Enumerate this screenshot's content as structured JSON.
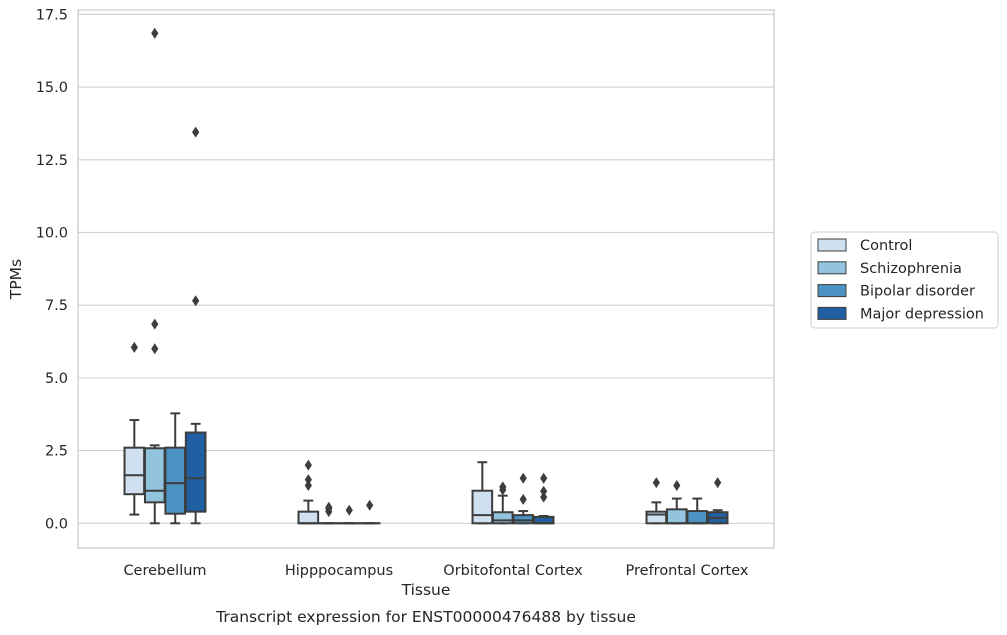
{
  "chart_data": {
    "type": "box",
    "xlabel": "Tissue",
    "ylabel": "TPMs",
    "caption": "Transcript expression for ENST00000476488 by tissue",
    "ylim": [
      -0.85,
      17.65
    ],
    "yticks": [
      "0.0",
      "2.5",
      "5.0",
      "7.5",
      "10.0",
      "12.5",
      "15.0",
      "17.5"
    ],
    "ytick_values": [
      0,
      2.5,
      5,
      7.5,
      10,
      12.5,
      15,
      17.5
    ],
    "grid": "horizontal",
    "legend_position": "right-outside",
    "categories": [
      "Cerebellum",
      "Hipppocampus",
      "Orbitofontal Cortex",
      "Prefrontal Cortex"
    ],
    "series": [
      {
        "name": "Control",
        "color": "#cfe0f1",
        "boxes": [
          {
            "whislo": 0.3,
            "q1": 1.0,
            "med": 1.65,
            "q3": 2.6,
            "whishi": 3.55,
            "fliers": [
              6.05
            ]
          },
          {
            "whislo": 0.0,
            "q1": 0.0,
            "med": 0.0,
            "q3": 0.4,
            "whishi": 0.78,
            "fliers": [
              1.3,
              1.5,
              2.0
            ]
          },
          {
            "whislo": 0.0,
            "q1": 0.0,
            "med": 0.28,
            "q3": 1.12,
            "whishi": 2.1,
            "fliers": []
          },
          {
            "whislo": 0.0,
            "q1": 0.0,
            "med": 0.3,
            "q3": 0.4,
            "whishi": 0.72,
            "fliers": [
              1.4
            ]
          }
        ]
      },
      {
        "name": "Schizophrenia",
        "color": "#93c4de",
        "boxes": [
          {
            "whislo": 0.0,
            "q1": 0.72,
            "med": 1.12,
            "q3": 2.58,
            "whishi": 2.68,
            "fliers": [
              6.0,
              6.85,
              16.85
            ]
          },
          {
            "whislo": 0.0,
            "q1": 0.0,
            "med": 0.0,
            "q3": 0.0,
            "whishi": 0.0,
            "fliers": [
              0.4,
              0.5,
              0.55
            ]
          },
          {
            "whislo": 0.0,
            "q1": 0.0,
            "med": 0.1,
            "q3": 0.38,
            "whishi": 0.95,
            "fliers": [
              1.15,
              1.25
            ]
          },
          {
            "whislo": 0.0,
            "q1": 0.0,
            "med": 0.0,
            "q3": 0.48,
            "whishi": 0.85,
            "fliers": [
              1.3
            ]
          }
        ]
      },
      {
        "name": "Bipolar disorder",
        "color": "#4c92c3",
        "boxes": [
          {
            "whislo": 0.0,
            "q1": 0.33,
            "med": 1.38,
            "q3": 2.6,
            "whishi": 3.78,
            "fliers": []
          },
          {
            "whislo": 0.0,
            "q1": 0.0,
            "med": 0.0,
            "q3": 0.0,
            "whishi": 0.0,
            "fliers": [
              0.45
            ]
          },
          {
            "whislo": 0.0,
            "q1": 0.0,
            "med": 0.1,
            "q3": 0.28,
            "whishi": 0.42,
            "fliers": [
              0.82,
              1.55
            ]
          },
          {
            "whislo": 0.0,
            "q1": 0.0,
            "med": 0.0,
            "q3": 0.42,
            "whishi": 0.85,
            "fliers": []
          }
        ]
      },
      {
        "name": "Major depression",
        "color": "#1f5fa2",
        "boxes": [
          {
            "whislo": 0.0,
            "q1": 0.4,
            "med": 1.55,
            "q3": 3.12,
            "whishi": 3.42,
            "fliers": [
              7.65,
              13.45
            ]
          },
          {
            "whislo": 0.0,
            "q1": 0.0,
            "med": 0.0,
            "q3": 0.0,
            "whishi": 0.0,
            "fliers": [
              0.62
            ]
          },
          {
            "whislo": 0.0,
            "q1": 0.0,
            "med": 0.0,
            "q3": 0.22,
            "whishi": 0.25,
            "fliers": [
              0.9,
              1.1,
              1.55
            ]
          },
          {
            "whislo": 0.0,
            "q1": 0.0,
            "med": 0.18,
            "q3": 0.38,
            "whishi": 0.45,
            "fliers": [
              1.4
            ]
          }
        ]
      }
    ]
  }
}
